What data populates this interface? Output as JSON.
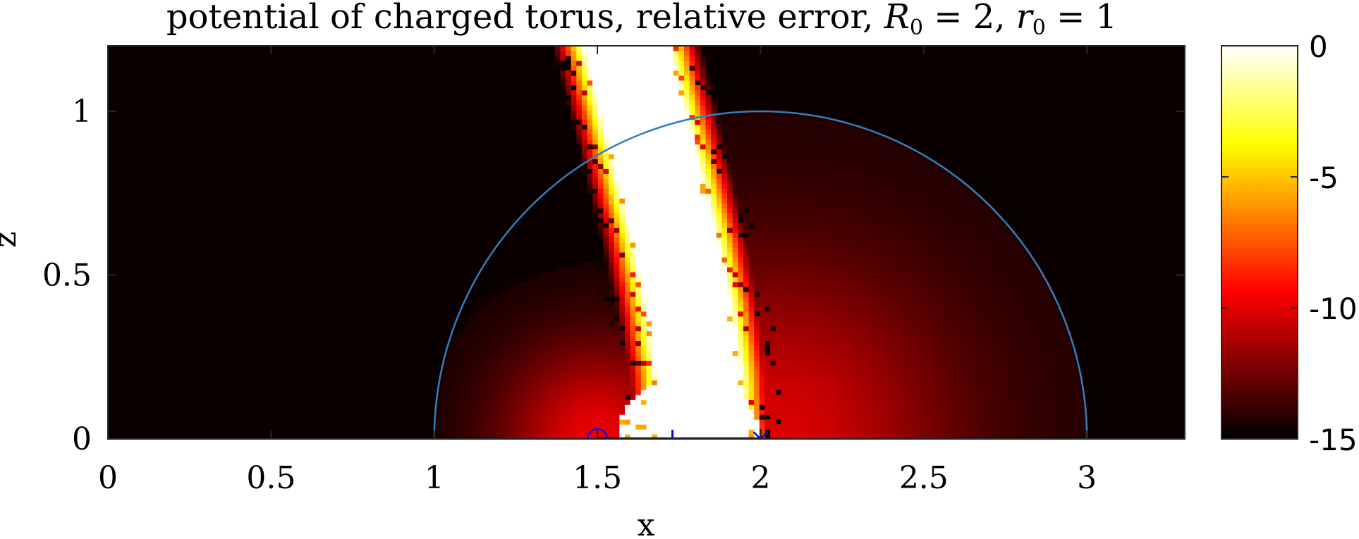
{
  "chart_data": {
    "type": "heatmap",
    "title": {
      "prefix": "potential of charged torus, relative error, ",
      "R_symbol": "R",
      "R_subscript": "0",
      "R_value": " = 2, ",
      "r_symbol": "r",
      "r_subscript": "0",
      "r_value": " = 1"
    },
    "xlabel": "x",
    "ylabel": "z",
    "xlim": [
      0,
      3.3
    ],
    "ylim": [
      0,
      1.2
    ],
    "x_ticks": [
      0,
      0.5,
      1,
      1.5,
      2,
      2.5,
      3
    ],
    "x_tick_labels": [
      "0",
      "0.5",
      "1",
      "1.5",
      "2",
      "2.5",
      "3"
    ],
    "y_ticks": [
      0,
      0.5,
      1
    ],
    "y_tick_labels": [
      "0",
      "0.5",
      "1"
    ],
    "colorbar": {
      "colormap": "hot",
      "range": [
        -15,
        0
      ],
      "ticks": [
        0,
        -5,
        -10,
        -15
      ],
      "tick_labels": [
        "0",
        "-5",
        "-10",
        "-15"
      ]
    },
    "circle_overlay": {
      "center": [
        2,
        0
      ],
      "radius": 1,
      "color": "#2f7fc1"
    },
    "markers": [
      {
        "symbol": "circle",
        "x": 1.5,
        "z": 0,
        "color": "#0000ff"
      },
      {
        "symbol": "plus",
        "x": 1.73,
        "z": 0,
        "color": "#0000ff"
      },
      {
        "symbol": "asterisk",
        "x": 2.0,
        "z": 0,
        "color": "#0000ff"
      }
    ],
    "error_band_centerline": [
      {
        "z": 0.0,
        "x": 1.82
      },
      {
        "z": 0.2,
        "x": 1.81
      },
      {
        "z": 0.4,
        "x": 1.78
      },
      {
        "z": 0.6,
        "x": 1.74
      },
      {
        "z": 0.8,
        "x": 1.69
      },
      {
        "z": 1.0,
        "x": 1.64
      },
      {
        "z": 1.2,
        "x": 1.59
      }
    ]
  }
}
